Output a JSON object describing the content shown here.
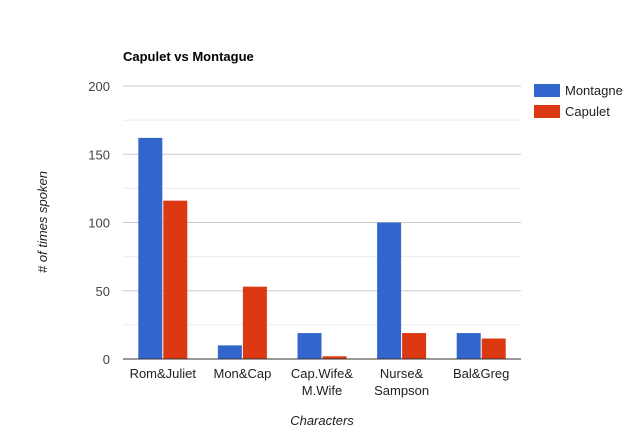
{
  "chart_data": {
    "type": "bar",
    "title": "Capulet vs Montague",
    "xlabel": "Characters",
    "ylabel": "# of times spoken",
    "categories": [
      [
        "Rom&Juliet"
      ],
      [
        "Mon&Cap"
      ],
      [
        "Cap.Wife&",
        "M.Wife"
      ],
      [
        "Nurse&",
        "Sampson"
      ],
      [
        "Bal&Greg"
      ]
    ],
    "series": [
      {
        "name": "Montagne",
        "color": "#3366cc",
        "values": [
          162,
          10,
          19,
          100,
          19
        ]
      },
      {
        "name": "Capulet",
        "color": "#dc3912",
        "values": [
          116,
          53,
          2,
          19,
          15
        ]
      }
    ],
    "ylim": [
      0,
      200
    ],
    "yticks": [
      0,
      50,
      100,
      150,
      200
    ],
    "grid": true,
    "legend": "right"
  }
}
